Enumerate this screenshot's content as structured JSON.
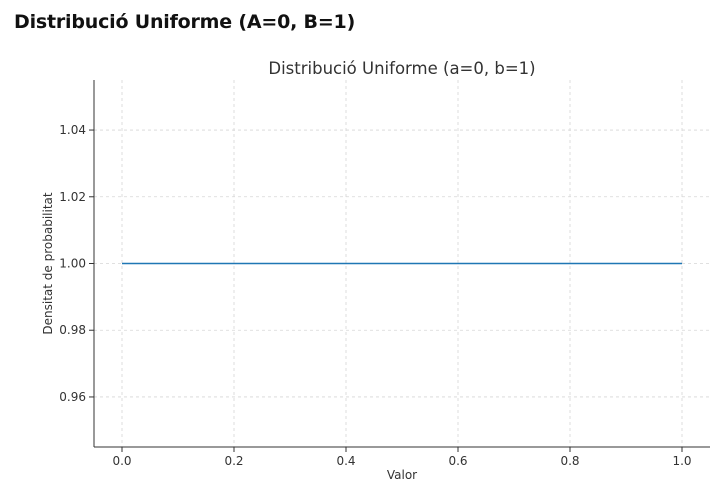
{
  "page": {
    "heading": "Distribució Uniforme (A=0, B=1)"
  },
  "chart_data": {
    "type": "line",
    "title": "Distribució Uniforme (a=0, b=1)",
    "xlabel": "Valor",
    "ylabel": "Densitat de probabilitat",
    "xlim": [
      -0.05,
      1.05
    ],
    "ylim": [
      0.945,
      1.055
    ],
    "x_ticks": [
      0.0,
      0.2,
      0.4,
      0.6,
      0.8,
      1.0
    ],
    "x_tick_labels": [
      "0.0",
      "0.2",
      "0.4",
      "0.6",
      "0.8",
      "1.0"
    ],
    "y_ticks": [
      0.96,
      0.98,
      1.0,
      1.02,
      1.04
    ],
    "y_tick_labels": [
      "0.96",
      "0.98",
      "1.00",
      "1.02",
      "1.04"
    ],
    "grid": true,
    "series": [
      {
        "x": [
          0.0,
          1.0
        ],
        "y": [
          1.0,
          1.0
        ],
        "color": "#1f77b4"
      }
    ]
  }
}
